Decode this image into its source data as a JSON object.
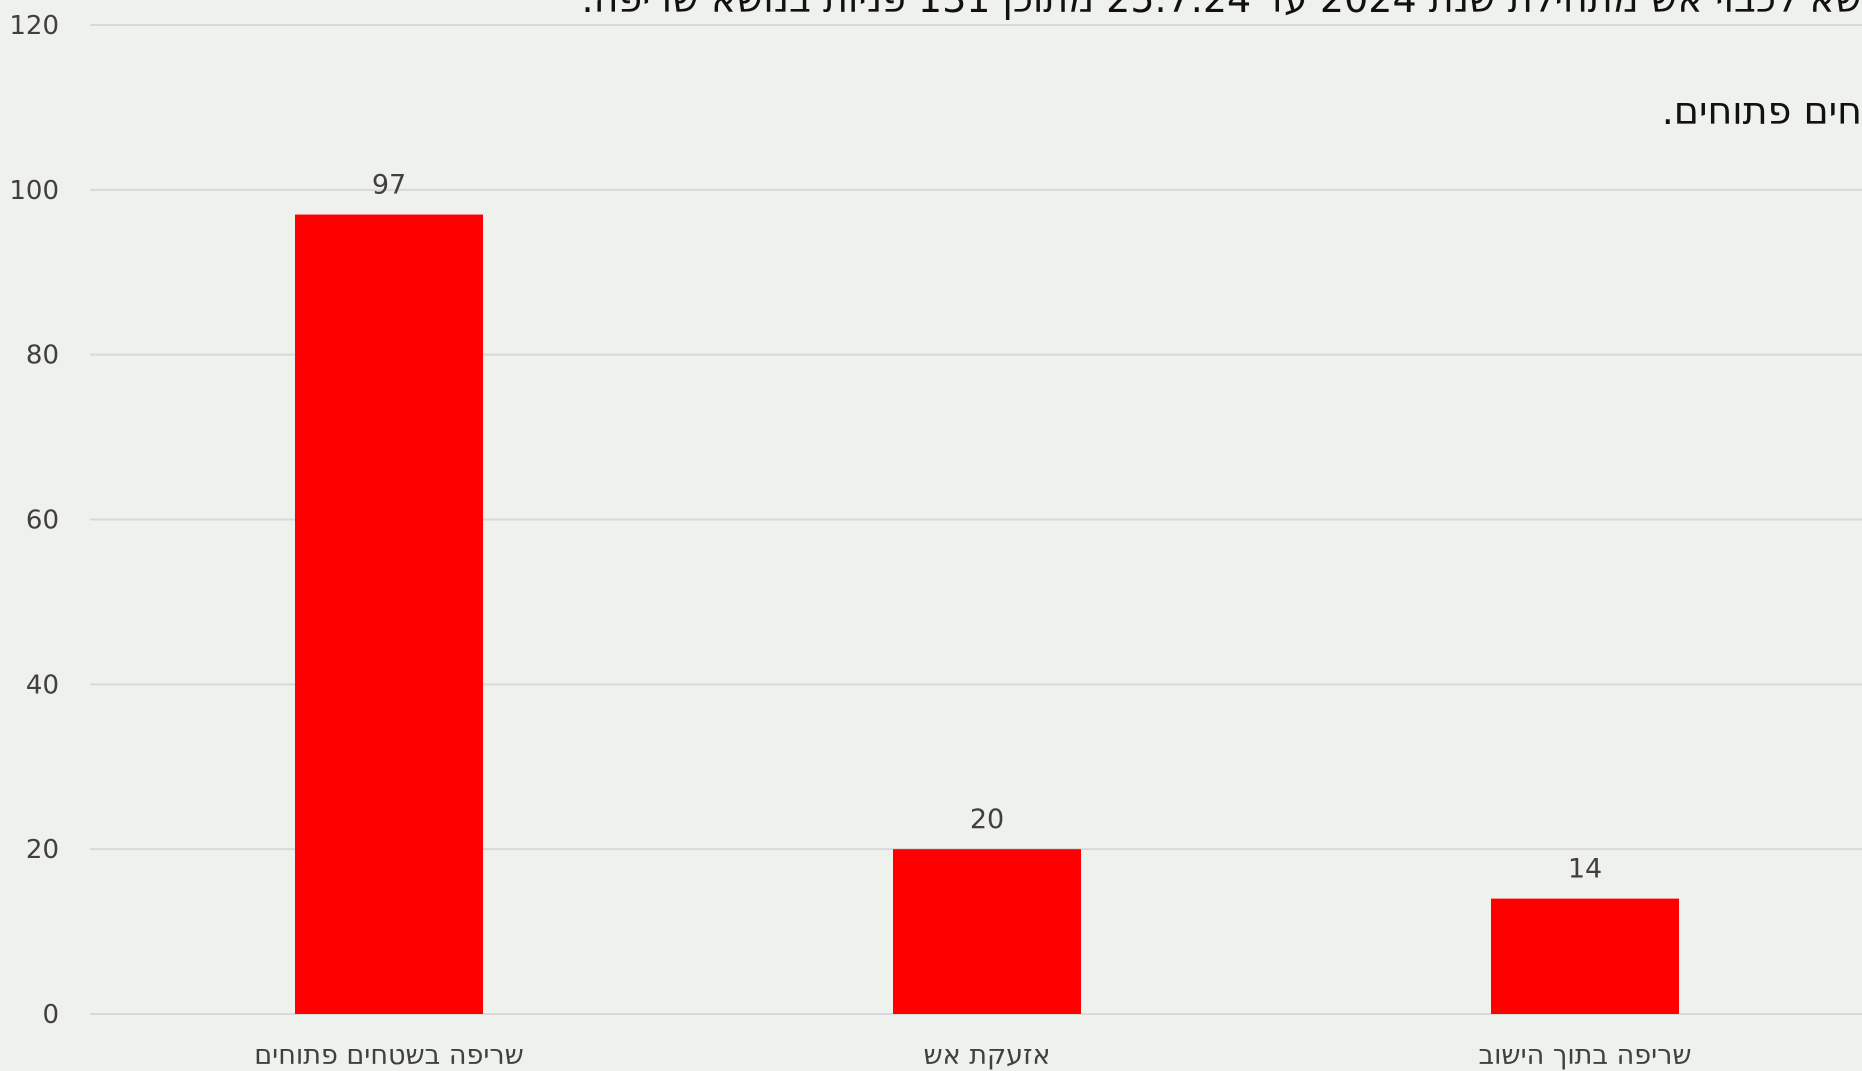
{
  "chart_data": {
    "type": "bar",
    "title_lines": [
      "שא לכבוי אש מתחילת שנת 2024 עד 25.7.24 מתוכן 131 פניות בנושא שריפה.",
      "חים פתוחים."
    ],
    "categories": [
      "שריפה בשטחים פתוחים",
      "אזעקת אש",
      "שריפה בתוך הישוב"
    ],
    "values": [
      97,
      20,
      14
    ],
    "ylim": [
      0,
      120
    ],
    "yticks": [
      0,
      20,
      40,
      60,
      80,
      100,
      120
    ],
    "grid": true,
    "legend": "none",
    "bar_color": "#ff0000",
    "grid_color": "#d9d9d9"
  }
}
